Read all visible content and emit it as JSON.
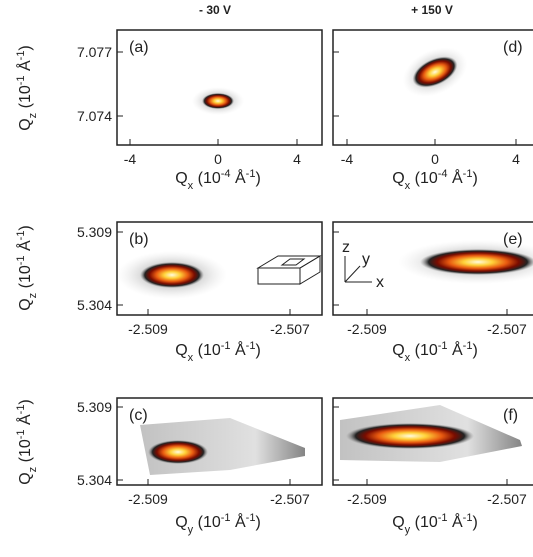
{
  "columns": [
    "- 30 V",
    "+ 150 V"
  ],
  "panels": [
    {
      "label": "(a)",
      "x_ticks": [
        "-4",
        "0",
        "4"
      ],
      "y_ticks": [
        "7.077",
        "7.074"
      ],
      "x_label": [
        "Q",
        "x",
        " (10",
        "-4",
        " Å",
        "-1",
        ")"
      ],
      "y_label": [
        "Q",
        "z",
        " (10",
        "-1",
        " Å",
        "-1",
        ")"
      ]
    },
    {
      "label": "(d)",
      "x_ticks": [
        "-4",
        "0",
        "4"
      ],
      "x_label": [
        "Q",
        "x",
        " (10",
        "-4",
        " Å",
        "-1",
        ")"
      ]
    },
    {
      "label": "(b)",
      "x_ticks": [
        "-2.509",
        "-2.507"
      ],
      "y_ticks": [
        "5.309",
        "5.304"
      ],
      "x_label": [
        "Q",
        "x",
        " (10",
        "-1",
        " Å",
        "-1",
        ")"
      ],
      "y_label": [
        "Q",
        "z",
        " (10",
        "-1",
        " Å",
        "-1",
        ")"
      ]
    },
    {
      "label": "(e)",
      "x_ticks": [
        "-2.509",
        "-2.507"
      ],
      "x_label": [
        "Q",
        "x",
        " (10",
        "-1",
        " Å",
        "-1",
        ")"
      ]
    },
    {
      "label": "(c)",
      "x_ticks": [
        "-2.509",
        "-2.507"
      ],
      "y_ticks": [
        "5.309",
        "5.304"
      ],
      "x_label": [
        "Q",
        "y",
        " (10",
        "-1",
        " Å",
        "-1",
        ")"
      ],
      "y_label": [
        "Q",
        "z",
        " (10",
        "-1",
        " Å",
        "-1",
        ")"
      ]
    },
    {
      "label": "(f)",
      "x_ticks": [
        "-2.509",
        "-2.507"
      ],
      "x_label": [
        "Q",
        "y",
        " (10",
        "-1",
        " Å",
        "-1",
        ")"
      ]
    }
  ],
  "inset": {
    "axes": [
      "z",
      "y",
      "x"
    ]
  }
}
